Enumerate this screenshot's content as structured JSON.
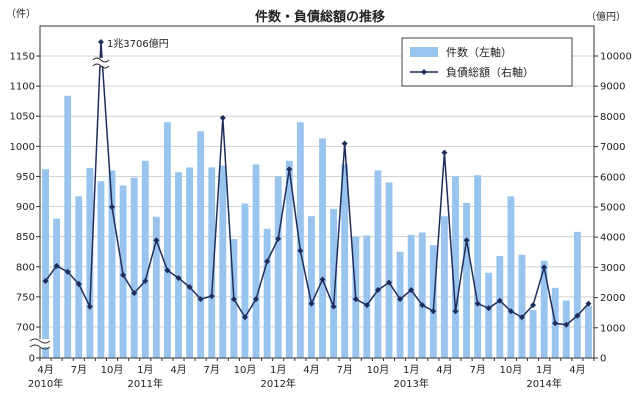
{
  "chart_data": {
    "type": "bar+line",
    "title": "件数・負債総額の推移",
    "left_unit": "（件）",
    "right_unit": "（億円）",
    "left_axis": {
      "ticks": [
        0,
        700,
        750,
        800,
        850,
        900,
        950,
        1000,
        1050,
        1100,
        1150
      ],
      "tick_labels": [
        "0",
        "700",
        "750",
        "800",
        "850",
        "900",
        "950",
        "1000",
        "1050",
        "1100",
        "1150"
      ],
      "broken_between": [
        0,
        700
      ]
    },
    "right_axis": {
      "ylim": [
        0,
        10000
      ],
      "ticks": [
        0,
        1000,
        2000,
        3000,
        4000,
        5000,
        6000,
        7000,
        8000,
        9000,
        10000
      ],
      "tick_labels": [
        "0",
        "1000",
        "2000",
        "3000",
        "4000",
        "5000",
        "6000",
        "7000",
        "8000",
        "9000",
        "10000"
      ]
    },
    "x_tick_labels": [
      {
        "index": 0,
        "label": "4月"
      },
      {
        "index": 3,
        "label": "7月"
      },
      {
        "index": 6,
        "label": "10月"
      },
      {
        "index": 9,
        "label": "1月"
      },
      {
        "index": 12,
        "label": "4月"
      },
      {
        "index": 15,
        "label": "7月"
      },
      {
        "index": 18,
        "label": "10月"
      },
      {
        "index": 21,
        "label": "1月"
      },
      {
        "index": 24,
        "label": "4月"
      },
      {
        "index": 27,
        "label": "7月"
      },
      {
        "index": 30,
        "label": "10月"
      },
      {
        "index": 33,
        "label": "1月"
      },
      {
        "index": 36,
        "label": "4月"
      },
      {
        "index": 39,
        "label": "7月"
      },
      {
        "index": 42,
        "label": "10月"
      },
      {
        "index": 45,
        "label": "1月"
      },
      {
        "index": 48,
        "label": "4月"
      }
    ],
    "year_labels": [
      {
        "index": 0,
        "label": "2010年"
      },
      {
        "index": 9,
        "label": "2011年"
      },
      {
        "index": 21,
        "label": "2012年"
      },
      {
        "index": 33,
        "label": "2013年"
      },
      {
        "index": 45,
        "label": "2014年"
      }
    ],
    "series": [
      {
        "name": "件数（左軸）",
        "kind": "bar",
        "axis": "left",
        "color": "#99C4EE",
        "values": [
          962,
          880,
          1084,
          917,
          964,
          942,
          960,
          935,
          948,
          976,
          883,
          1040,
          957,
          965,
          1025,
          965,
          968,
          846,
          905,
          970,
          863,
          950,
          976,
          1040,
          884,
          1013,
          896,
          970,
          850,
          852,
          960,
          940,
          825,
          853,
          857,
          836,
          884,
          950,
          906,
          952,
          790,
          818,
          917,
          820,
          728,
          810,
          765,
          744,
          858,
          735
        ]
      },
      {
        "name": "負債総額（右軸）",
        "kind": "line",
        "axis": "right",
        "color": "#1F2D5A",
        "values": [
          2550,
          3050,
          2850,
          2450,
          1700,
          10500,
          5000,
          2750,
          2150,
          2550,
          3900,
          2900,
          2650,
          2350,
          1950,
          2050,
          7950,
          1950,
          1350,
          1950,
          3200,
          3950,
          6250,
          3550,
          1800,
          2600,
          1700,
          7100,
          1950,
          1750,
          2250,
          2500,
          1950,
          2250,
          1750,
          1550,
          6800,
          1550,
          3900,
          1800,
          1650,
          1900,
          1550,
          1350,
          1750,
          3000,
          1150,
          1100,
          1400,
          1800
        ]
      }
    ],
    "annotation": {
      "index": 5,
      "text": "1兆3706億円"
    }
  }
}
